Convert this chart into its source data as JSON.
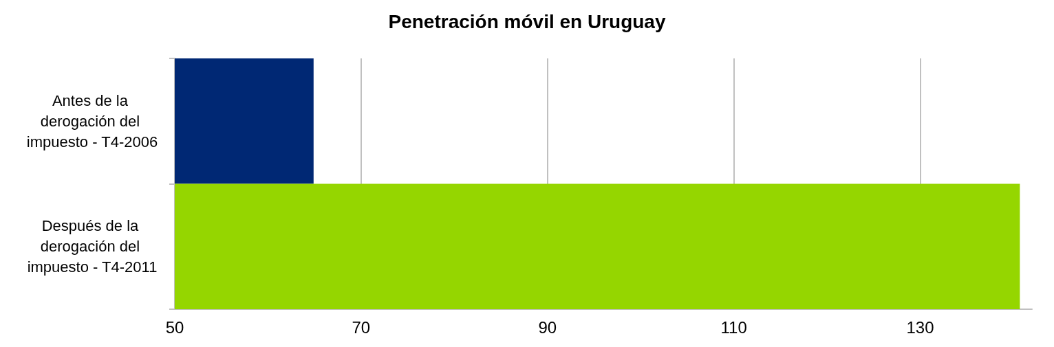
{
  "chart_data": {
    "type": "bar",
    "orientation": "horizontal",
    "title": "Penetración móvil en Uruguay",
    "categories": [
      "Antes de la derogación del impuesto - T4-2006",
      "Después de la derogación del impuesto - T4-2011"
    ],
    "values": [
      64.9,
      140.7
    ],
    "colors": [
      "#002874",
      "#95d600"
    ],
    "xlim": [
      50,
      142
    ],
    "xticks": [
      50,
      70,
      90,
      110,
      130
    ],
    "grid": "x"
  }
}
